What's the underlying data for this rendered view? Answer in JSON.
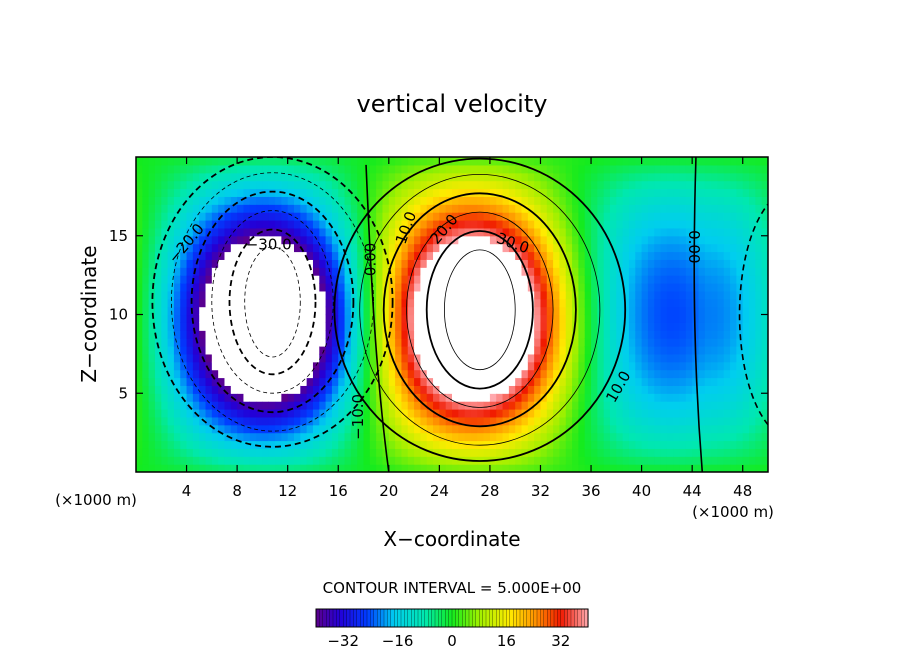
{
  "chart_data": {
    "type": "heatmap",
    "title": "vertical velocity",
    "xlabel": "X−coordinate",
    "ylabel": "Z−coordinate",
    "x_unit_left": "(×1000 m)",
    "x_unit_right": "(×1000 m)",
    "xlim": [
      0,
      50
    ],
    "ylim": [
      0,
      20
    ],
    "x_ticks": [
      4,
      8,
      12,
      16,
      20,
      24,
      28,
      32,
      36,
      40,
      44,
      48
    ],
    "y_ticks": [
      5,
      10,
      15
    ],
    "contour_interval_label": "CONTOUR INTERVAL = 5.000E+00",
    "contour_interval": 5,
    "colorbar_range": [
      -40,
      40
    ],
    "colorbar_ticks": [
      -32,
      -16,
      0,
      16,
      32
    ],
    "contour_labels": [
      {
        "text": "−20.0",
        "x": 4,
        "z": 14.5,
        "angle": -50
      },
      {
        "text": "−30.0",
        "x": 10.5,
        "z": 14.4,
        "angle": 0
      },
      {
        "text": "0.00",
        "x": 18.6,
        "z": 13.5,
        "angle": -90
      },
      {
        "text": "−10.0",
        "x": 17.6,
        "z": 3.5,
        "angle": -90
      },
      {
        "text": "10.0",
        "x": 21.4,
        "z": 15.5,
        "angle": -70
      },
      {
        "text": "20.0",
        "x": 24.4,
        "z": 15.4,
        "angle": -50
      },
      {
        "text": "30.0",
        "x": 29.8,
        "z": 14.5,
        "angle": 20
      },
      {
        "text": "10.0",
        "x": 38.2,
        "z": 5.4,
        "angle": -60
      },
      {
        "text": "0.00",
        "x": 44.1,
        "z": 14.3,
        "angle": 90
      }
    ],
    "fields": {
      "downdraft_core": {
        "x": 10.8,
        "z": 9.6,
        "peak": -45
      },
      "updraft_core": {
        "x": 27.2,
        "z": 9.6,
        "peak": 45
      }
    }
  }
}
